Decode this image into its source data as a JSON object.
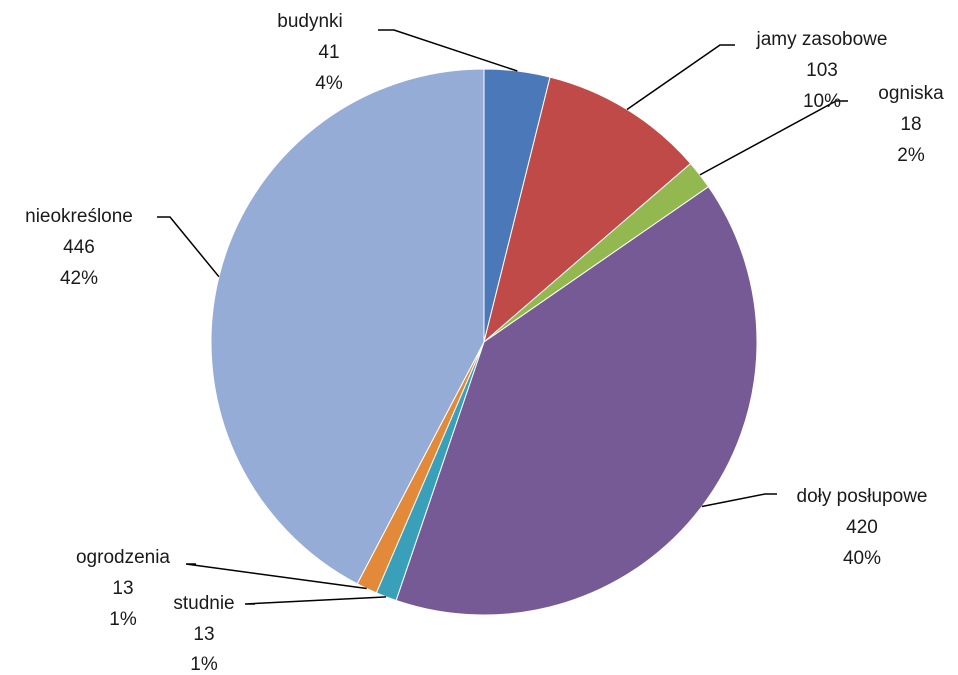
{
  "chart_data": {
    "type": "pie",
    "title": "",
    "start_angle_deg": 0,
    "direction": "clockwise",
    "slices": [
      {
        "key": "budynki",
        "label": "budynki",
        "value": 41,
        "value_label": "41",
        "percent_label": "4%",
        "color": "#4a78b8"
      },
      {
        "key": "jamy",
        "label": "jamy zasobowe",
        "value": 103,
        "value_label": "103",
        "percent_label": "10%",
        "color": "#bf4a47"
      },
      {
        "key": "ogniska",
        "label": "ogniska",
        "value": 18,
        "value_label": "18",
        "percent_label": "2%",
        "color": "#93b84f"
      },
      {
        "key": "doly",
        "label": "doły posłupowe",
        "value": 420,
        "value_label": "420",
        "percent_label": "40%",
        "color": "#765a95"
      },
      {
        "key": "studnie",
        "label": "studnie",
        "value": 13,
        "value_label": "13",
        "percent_label": "1%",
        "color": "#3a9fb8"
      },
      {
        "key": "ogrodzenia",
        "label": "ogrodzenia",
        "value": 13,
        "value_label": "13",
        "percent_label": "1%",
        "color": "#e38a3a"
      },
      {
        "key": "nieokreslone",
        "label": "nieokreślone",
        "value": 446,
        "value_label": "446",
        "percent_label": "42%",
        "color": "#95acd6"
      }
    ]
  }
}
